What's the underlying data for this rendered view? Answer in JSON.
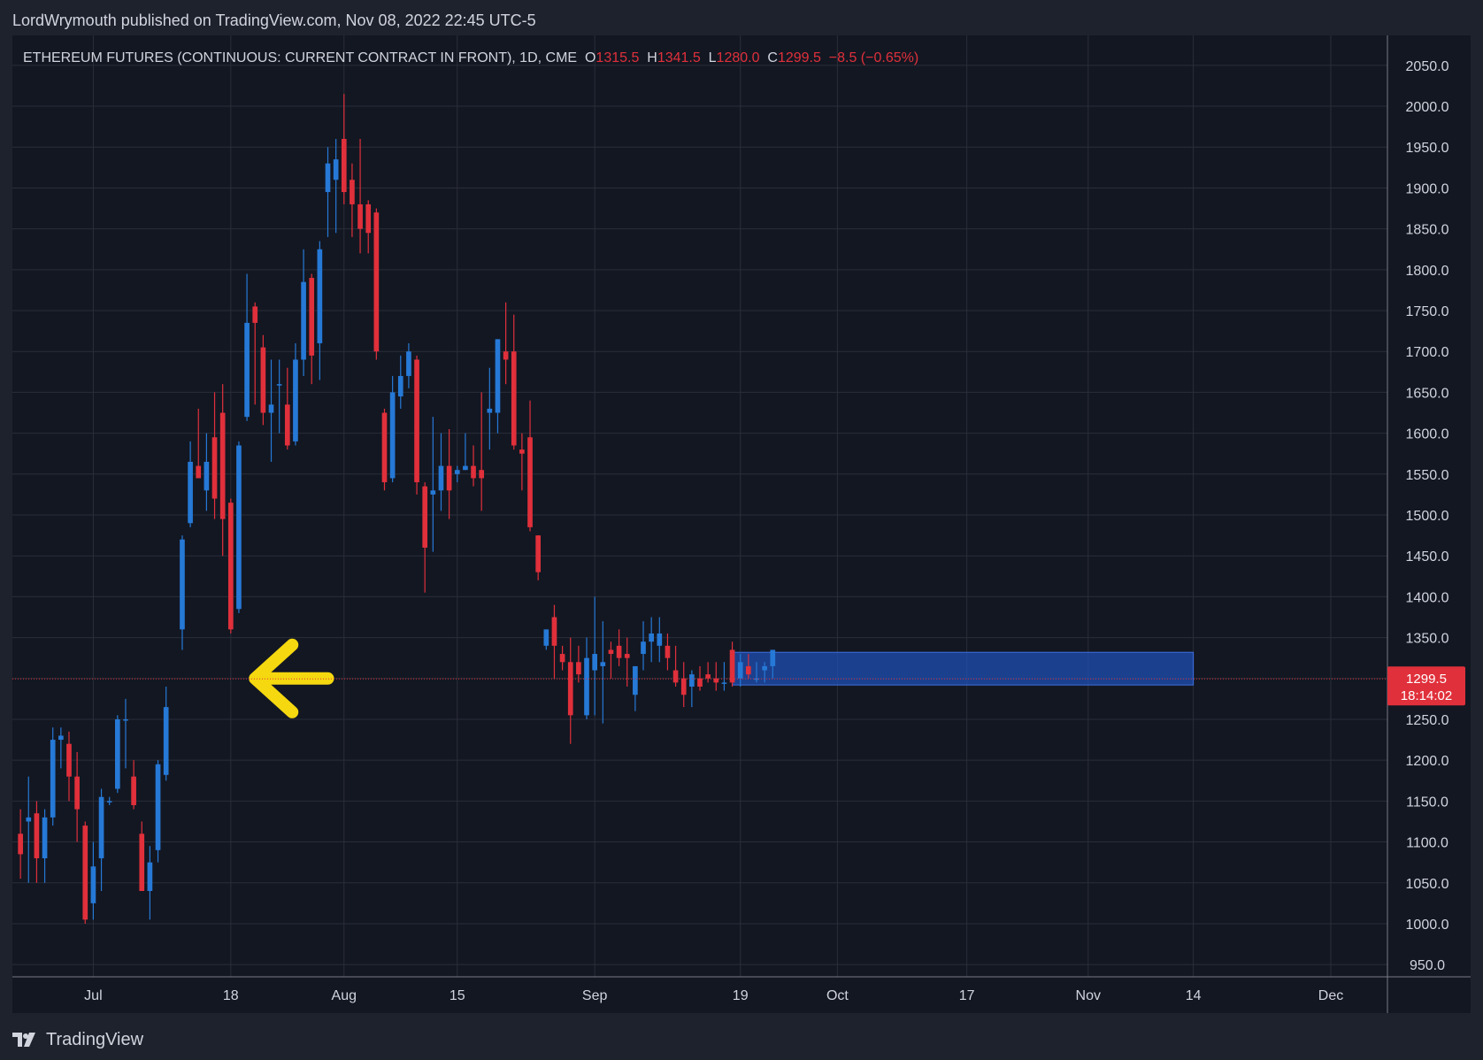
{
  "header": {
    "published": "LordWrymouth published on TradingView.com, Nov 08, 2022 22:45 UTC-5"
  },
  "footer": {
    "brand": "TradingView"
  },
  "colors": {
    "background": "#131722",
    "frame": "#1e222d",
    "grid": "#2a2e39",
    "up": "#2679d6",
    "down": "#e0303b",
    "zone_fill": "#1f4fb3",
    "arrow": "#f5d80f",
    "price_tag": "#e0303b"
  },
  "chart_data": {
    "type": "candlestick",
    "title": "ETHEREUM FUTURES (CONTINUOUS: CURRENT CONTRACT IN FRONT), 1D, CME",
    "ohlc_label": {
      "o_label": "O",
      "o_value": "1315.5",
      "h_label": "H",
      "h_value": "1341.5",
      "l_label": "L",
      "l_value": "1280.0",
      "c_label": "C",
      "c_value": "1299.5",
      "change": "−8.5 (−0.65%)"
    },
    "ylim": [
      935,
      2065
    ],
    "y_ticks": [
      "2050.0",
      "2000.0",
      "1950.0",
      "1900.0",
      "1850.0",
      "1800.0",
      "1750.0",
      "1700.0",
      "1650.0",
      "1600.0",
      "1550.0",
      "1500.0",
      "1450.0",
      "1400.0",
      "1350.0",
      "1300.0",
      "1250.0",
      "1200.0",
      "1150.0",
      "1100.0",
      "1050.0",
      "1000.0",
      "950.0"
    ],
    "x_ticks": [
      {
        "label": "Jul",
        "date": "2022-07-01"
      },
      {
        "label": "18",
        "date": "2022-07-18"
      },
      {
        "label": "Aug",
        "date": "2022-08-01"
      },
      {
        "label": "15",
        "date": "2022-08-15"
      },
      {
        "label": "Sep",
        "date": "2022-09-01"
      },
      {
        "label": "19",
        "date": "2022-09-19"
      },
      {
        "label": "Oct",
        "date": "2022-10-01"
      },
      {
        "label": "17",
        "date": "2022-10-17"
      },
      {
        "label": "Nov",
        "date": "2022-11-01"
      },
      {
        "label": "14",
        "date": "2022-11-14"
      },
      {
        "label": "Dec",
        "date": "2022-12-01"
      }
    ],
    "x_range": [
      "2022-06-21",
      "2022-12-08"
    ],
    "last_price": {
      "value": 1299.5,
      "label": "1299.5",
      "countdown": "18:14:02"
    },
    "support_zone": {
      "from_date": "2022-09-18",
      "to_date": "2022-11-14",
      "low": 1292,
      "high": 1332
    },
    "arrow": {
      "tip_date": "2022-07-21",
      "tail_date": "2022-07-30",
      "price": 1300
    },
    "candles": [
      {
        "d": "2022-06-22",
        "o": 1110,
        "h": 1140,
        "l": 1055,
        "c": 1085
      },
      {
        "d": "2022-06-23",
        "o": 1125,
        "h": 1180,
        "l": 1050,
        "c": 1130
      },
      {
        "d": "2022-06-24",
        "o": 1135,
        "h": 1150,
        "l": 1050,
        "c": 1080
      },
      {
        "d": "2022-06-25",
        "o": 1080,
        "h": 1140,
        "l": 1050,
        "c": 1130
      },
      {
        "d": "2022-06-26",
        "o": 1130,
        "h": 1240,
        "l": 1120,
        "c": 1225
      },
      {
        "d": "2022-06-27",
        "o": 1225,
        "h": 1240,
        "l": 1190,
        "c": 1230
      },
      {
        "d": "2022-06-28",
        "o": 1220,
        "h": 1235,
        "l": 1150,
        "c": 1180
      },
      {
        "d": "2022-06-29",
        "o": 1180,
        "h": 1210,
        "l": 1100,
        "c": 1140
      },
      {
        "d": "2022-06-30",
        "o": 1120,
        "h": 1125,
        "l": 1000,
        "c": 1005
      },
      {
        "d": "2022-07-01",
        "o": 1025,
        "h": 1100,
        "l": 1005,
        "c": 1070
      },
      {
        "d": "2022-07-02",
        "o": 1080,
        "h": 1165,
        "l": 1040,
        "c": 1155
      },
      {
        "d": "2022-07-03",
        "o": 1150,
        "h": 1155,
        "l": 1145,
        "c": 1150
      },
      {
        "d": "2022-07-04",
        "o": 1165,
        "h": 1255,
        "l": 1160,
        "c": 1250
      },
      {
        "d": "2022-07-05",
        "o": 1250,
        "h": 1275,
        "l": 1190,
        "c": 1250
      },
      {
        "d": "2022-07-06",
        "o": 1180,
        "h": 1200,
        "l": 1140,
        "c": 1145
      },
      {
        "d": "2022-07-07",
        "o": 1110,
        "h": 1125,
        "l": 1040,
        "c": 1040
      },
      {
        "d": "2022-07-08",
        "o": 1040,
        "h": 1095,
        "l": 1005,
        "c": 1075
      },
      {
        "d": "2022-07-09",
        "o": 1090,
        "h": 1200,
        "l": 1075,
        "c": 1195
      },
      {
        "d": "2022-07-10",
        "o": 1182,
        "h": 1290,
        "l": 1175,
        "c": 1265
      },
      {
        "d": "2022-07-12",
        "o": 1360,
        "h": 1475,
        "l": 1335,
        "c": 1470
      },
      {
        "d": "2022-07-13",
        "o": 1490,
        "h": 1590,
        "l": 1485,
        "c": 1565
      },
      {
        "d": "2022-07-14",
        "o": 1560,
        "h": 1630,
        "l": 1545,
        "c": 1545
      },
      {
        "d": "2022-07-15",
        "o": 1530,
        "h": 1600,
        "l": 1505,
        "c": 1565
      },
      {
        "d": "2022-07-16",
        "o": 1595,
        "h": 1650,
        "l": 1495,
        "c": 1520
      },
      {
        "d": "2022-07-17",
        "o": 1625,
        "h": 1660,
        "l": 1450,
        "c": 1495
      },
      {
        "d": "2022-07-18",
        "o": 1515,
        "h": 1520,
        "l": 1355,
        "c": 1360
      },
      {
        "d": "2022-07-19",
        "o": 1385,
        "h": 1590,
        "l": 1380,
        "c": 1585
      },
      {
        "d": "2022-07-20",
        "o": 1620,
        "h": 1795,
        "l": 1615,
        "c": 1735
      },
      {
        "d": "2022-07-21",
        "o": 1755,
        "h": 1760,
        "l": 1635,
        "c": 1735
      },
      {
        "d": "2022-07-22",
        "o": 1705,
        "h": 1720,
        "l": 1610,
        "c": 1625
      },
      {
        "d": "2022-07-23",
        "o": 1625,
        "h": 1690,
        "l": 1565,
        "c": 1635
      },
      {
        "d": "2022-07-24",
        "o": 1660,
        "h": 1690,
        "l": 1600,
        "c": 1660
      },
      {
        "d": "2022-07-25",
        "o": 1635,
        "h": 1680,
        "l": 1580,
        "c": 1585
      },
      {
        "d": "2022-07-26",
        "o": 1590,
        "h": 1710,
        "l": 1585,
        "c": 1690
      },
      {
        "d": "2022-07-27",
        "o": 1690,
        "h": 1825,
        "l": 1670,
        "c": 1785
      },
      {
        "d": "2022-07-28",
        "o": 1790,
        "h": 1795,
        "l": 1660,
        "c": 1695
      },
      {
        "d": "2022-07-29",
        "o": 1710,
        "h": 1835,
        "l": 1665,
        "c": 1825
      },
      {
        "d": "2022-07-30",
        "o": 1895,
        "h": 1950,
        "l": 1840,
        "c": 1930
      },
      {
        "d": "2022-07-31",
        "o": 1910,
        "h": 1960,
        "l": 1845,
        "c": 1935
      },
      {
        "d": "2022-08-01",
        "o": 1960,
        "h": 2015,
        "l": 1880,
        "c": 1895
      },
      {
        "d": "2022-08-02",
        "o": 1910,
        "h": 1930,
        "l": 1840,
        "c": 1880
      },
      {
        "d": "2022-08-03",
        "o": 1880,
        "h": 1960,
        "l": 1820,
        "c": 1850
      },
      {
        "d": "2022-08-04",
        "o": 1880,
        "h": 1885,
        "l": 1820,
        "c": 1845
      },
      {
        "d": "2022-08-05",
        "o": 1870,
        "h": 1875,
        "l": 1690,
        "c": 1700
      },
      {
        "d": "2022-08-06",
        "o": 1625,
        "h": 1630,
        "l": 1530,
        "c": 1540
      },
      {
        "d": "2022-08-07",
        "o": 1545,
        "h": 1670,
        "l": 1540,
        "c": 1650
      },
      {
        "d": "2022-08-08",
        "o": 1645,
        "h": 1695,
        "l": 1630,
        "c": 1670
      },
      {
        "d": "2022-08-09",
        "o": 1670,
        "h": 1710,
        "l": 1655,
        "c": 1700
      },
      {
        "d": "2022-08-10",
        "o": 1690,
        "h": 1695,
        "l": 1525,
        "c": 1540
      },
      {
        "d": "2022-08-11",
        "o": 1535,
        "h": 1540,
        "l": 1405,
        "c": 1460
      },
      {
        "d": "2022-08-12",
        "o": 1525,
        "h": 1620,
        "l": 1455,
        "c": 1530
      },
      {
        "d": "2022-08-13",
        "o": 1530,
        "h": 1600,
        "l": 1505,
        "c": 1560
      },
      {
        "d": "2022-08-14",
        "o": 1560,
        "h": 1605,
        "l": 1495,
        "c": 1530
      },
      {
        "d": "2022-08-15",
        "o": 1550,
        "h": 1560,
        "l": 1540,
        "c": 1555
      },
      {
        "d": "2022-08-16",
        "o": 1555,
        "h": 1600,
        "l": 1555,
        "c": 1560
      },
      {
        "d": "2022-08-17",
        "o": 1560,
        "h": 1585,
        "l": 1535,
        "c": 1545
      },
      {
        "d": "2022-08-18",
        "o": 1555,
        "h": 1650,
        "l": 1505,
        "c": 1545
      },
      {
        "d": "2022-08-19",
        "o": 1625,
        "h": 1680,
        "l": 1580,
        "c": 1630
      },
      {
        "d": "2022-08-20",
        "o": 1625,
        "h": 1715,
        "l": 1600,
        "c": 1715
      },
      {
        "d": "2022-08-21",
        "o": 1700,
        "h": 1760,
        "l": 1660,
        "c": 1690
      },
      {
        "d": "2022-08-22",
        "o": 1700,
        "h": 1745,
        "l": 1580,
        "c": 1585
      },
      {
        "d": "2022-08-23",
        "o": 1580,
        "h": 1600,
        "l": 1530,
        "c": 1575
      },
      {
        "d": "2022-08-24",
        "o": 1595,
        "h": 1640,
        "l": 1480,
        "c": 1485
      },
      {
        "d": "2022-08-25",
        "o": 1475,
        "h": 1475,
        "l": 1420,
        "c": 1430
      },
      {
        "d": "2022-08-26",
        "o": 1340,
        "h": 1355,
        "l": 1335,
        "c": 1360
      },
      {
        "d": "2022-08-27",
        "o": 1375,
        "h": 1390,
        "l": 1300,
        "c": 1340
      },
      {
        "d": "2022-08-28",
        "o": 1330,
        "h": 1340,
        "l": 1310,
        "c": 1320
      },
      {
        "d": "2022-08-29",
        "o": 1320,
        "h": 1350,
        "l": 1220,
        "c": 1255
      },
      {
        "d": "2022-08-30",
        "o": 1320,
        "h": 1340,
        "l": 1295,
        "c": 1305
      },
      {
        "d": "2022-08-31",
        "o": 1255,
        "h": 1350,
        "l": 1250,
        "c": 1325
      },
      {
        "d": "2022-09-01",
        "o": 1310,
        "h": 1400,
        "l": 1255,
        "c": 1330
      },
      {
        "d": "2022-09-02",
        "o": 1315,
        "h": 1370,
        "l": 1245,
        "c": 1320
      },
      {
        "d": "2022-09-03",
        "o": 1335,
        "h": 1345,
        "l": 1300,
        "c": 1330
      },
      {
        "d": "2022-09-04",
        "o": 1340,
        "h": 1360,
        "l": 1315,
        "c": 1325
      },
      {
        "d": "2022-09-05",
        "o": 1330,
        "h": 1350,
        "l": 1290,
        "c": 1325
      },
      {
        "d": "2022-09-06",
        "o": 1280,
        "h": 1310,
        "l": 1260,
        "c": 1315
      },
      {
        "d": "2022-09-07",
        "o": 1330,
        "h": 1370,
        "l": 1310,
        "c": 1345
      },
      {
        "d": "2022-09-08",
        "o": 1345,
        "h": 1375,
        "l": 1320,
        "c": 1355
      },
      {
        "d": "2022-09-09",
        "o": 1340,
        "h": 1375,
        "l": 1320,
        "c": 1355
      },
      {
        "d": "2022-09-10",
        "o": 1340,
        "h": 1355,
        "l": 1310,
        "c": 1325
      },
      {
        "d": "2022-09-11",
        "o": 1310,
        "h": 1340,
        "l": 1290,
        "c": 1295
      },
      {
        "d": "2022-09-12",
        "o": 1300,
        "h": 1320,
        "l": 1265,
        "c": 1280
      },
      {
        "d": "2022-09-13",
        "o": 1290,
        "h": 1310,
        "l": 1265,
        "c": 1305
      },
      {
        "d": "2022-09-14",
        "o": 1300,
        "h": 1315,
        "l": 1285,
        "c": 1290
      },
      {
        "d": "2022-09-15",
        "o": 1305,
        "h": 1320,
        "l": 1295,
        "c": 1300
      },
      {
        "d": "2022-09-16",
        "o": 1300,
        "h": 1320,
        "l": 1285,
        "c": 1295
      },
      {
        "d": "2022-09-17",
        "o": 1295,
        "h": 1320,
        "l": 1285,
        "c": 1295
      },
      {
        "d": "2022-09-18",
        "o": 1335,
        "h": 1345,
        "l": 1290,
        "c": 1295
      },
      {
        "d": "2022-09-19",
        "o": 1300,
        "h": 1330,
        "l": 1290,
        "c": 1320
      },
      {
        "d": "2022-09-20",
        "o": 1315,
        "h": 1330,
        "l": 1300,
        "c": 1305
      },
      {
        "d": "2022-09-21",
        "o": 1300,
        "h": 1320,
        "l": 1295,
        "c": 1300
      },
      {
        "d": "2022-09-22",
        "o": 1310,
        "h": 1320,
        "l": 1295,
        "c": 1315
      },
      {
        "d": "2022-09-23",
        "o": 1315,
        "h": 1330,
        "l": 1300,
        "c": 1335
      }
    ]
  }
}
